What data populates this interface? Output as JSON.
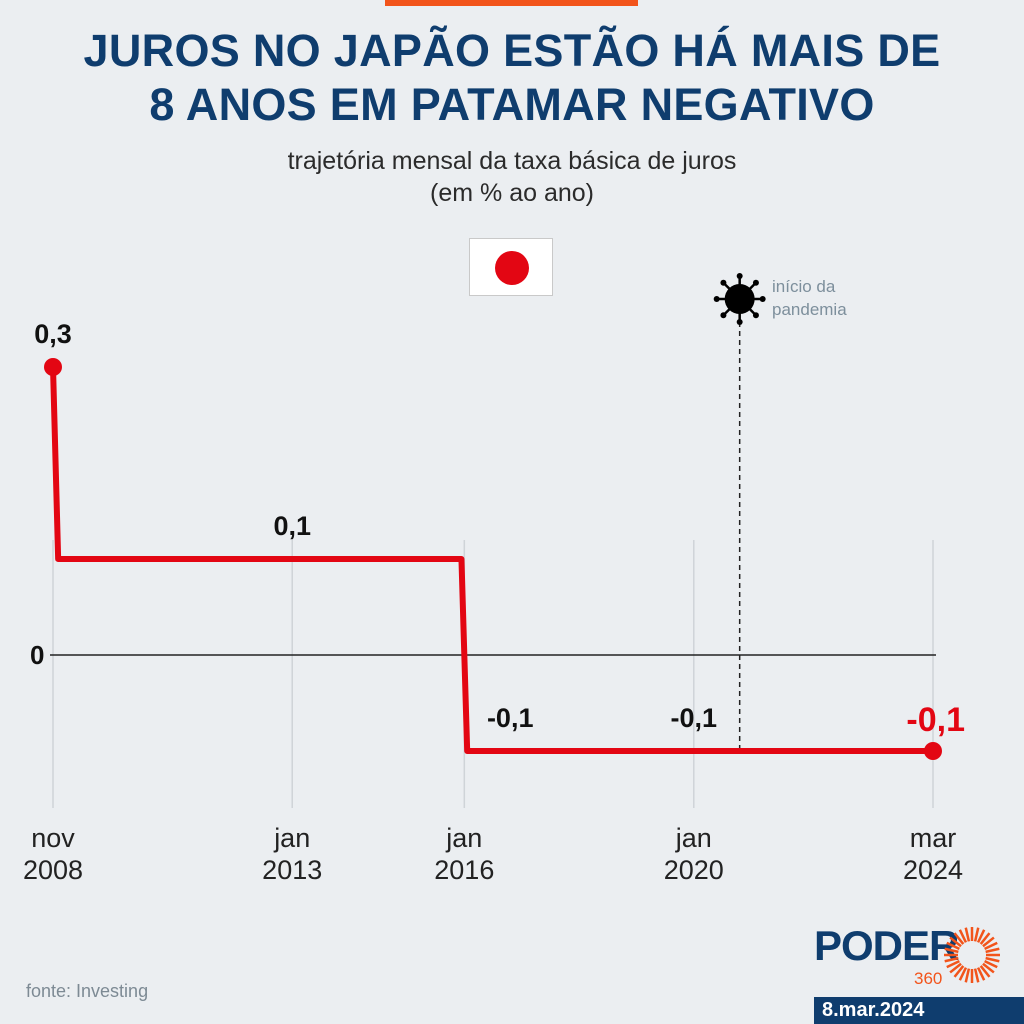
{
  "header": {
    "title_line1": "JUROS NO JAPÃO ESTÃO HÁ MAIS DE",
    "title_line2": "8 ANOS EM PATAMAR NEGATIVO",
    "subtitle_line1": "trajetória mensal da taxa básica de juros",
    "subtitle_line2": "(em % ao ano)"
  },
  "flag_icon": "japan-flag",
  "chart_data": {
    "type": "line",
    "step": true,
    "series": [
      {
        "color": "#e30613",
        "points": [
          [
            2008.83,
            0.3
          ],
          [
            2008.92,
            0.1
          ],
          [
            2015.95,
            0.1
          ],
          [
            2016.05,
            -0.1
          ],
          [
            2024.17,
            -0.1
          ]
        ]
      }
    ],
    "ylim": [
      -0.25,
      0.35
    ],
    "zero_label": "0",
    "data_labels": [
      {
        "x": 2008.83,
        "y": 0.3,
        "text": "0,3"
      },
      {
        "x": 2013.0,
        "y": 0.1,
        "text": "0,1"
      },
      {
        "x": 2016.8,
        "y": -0.1,
        "text": "-0,1"
      },
      {
        "x": 2020.0,
        "y": -0.1,
        "text": "-0,1"
      },
      {
        "x": 2024.17,
        "y": -0.1,
        "text": "-0,1",
        "highlight": true
      }
    ],
    "x_ticks": [
      {
        "x": 2008.83,
        "line1": "nov",
        "line2": "2008"
      },
      {
        "x": 2013.0,
        "line1": "jan",
        "line2": "2013"
      },
      {
        "x": 2016.0,
        "line1": "jan",
        "line2": "2016"
      },
      {
        "x": 2020.0,
        "line1": "jan",
        "line2": "2020"
      },
      {
        "x": 2024.17,
        "line1": "mar",
        "line2": "2024"
      }
    ],
    "annotation": {
      "x": 2020.8,
      "line1": "início da",
      "line2": "pandemia",
      "icon": "virus-icon"
    },
    "grid": "vertical"
  },
  "footer": {
    "source": "fonte: Investing",
    "logo_word": "PODER",
    "logo_num": "360",
    "date": "8.mar.2024"
  },
  "colors": {
    "title": "#0f3d6e",
    "accent": "#f2541b",
    "series": "#e30613"
  }
}
